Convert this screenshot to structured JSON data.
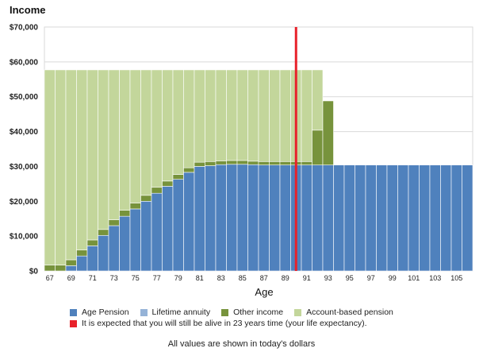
{
  "chart_data": {
    "type": "bar",
    "stacked": true,
    "title": "Income",
    "xlabel": "Age",
    "ylabel": "Income",
    "ylim": [
      0,
      70000
    ],
    "y_ticks": [
      0,
      10000,
      20000,
      30000,
      40000,
      50000,
      60000,
      70000
    ],
    "y_tick_labels": [
      "$0",
      "$10,000",
      "$20,000",
      "$30,000",
      "$40,000",
      "$50,000",
      "$60,000",
      "$70,000"
    ],
    "x_tick_labels": [
      "67",
      "69",
      "71",
      "73",
      "75",
      "77",
      "79",
      "81",
      "83",
      "85",
      "87",
      "89",
      "91",
      "93",
      "95",
      "97",
      "99",
      "101",
      "103",
      "105"
    ],
    "categories": [
      67,
      68,
      69,
      70,
      71,
      72,
      73,
      74,
      75,
      76,
      77,
      78,
      79,
      80,
      81,
      82,
      83,
      84,
      85,
      86,
      87,
      88,
      89,
      90,
      91,
      92,
      93,
      94,
      95,
      96,
      97,
      98,
      99,
      100,
      101,
      102,
      103,
      104,
      105,
      106
    ],
    "series": [
      {
        "name": "Age Pension",
        "color": "#4f81bd",
        "values": [
          0,
          0,
          1500,
          4300,
          7200,
          10200,
          13000,
          15700,
          17800,
          20000,
          22300,
          24300,
          26300,
          28300,
          30000,
          30200,
          30500,
          30600,
          30600,
          30500,
          30400,
          30400,
          30400,
          30400,
          30400,
          30400,
          30400,
          30400,
          30400,
          30400,
          30400,
          30400,
          30400,
          30400,
          30400,
          30400,
          30400,
          30400,
          30400,
          30400
        ]
      },
      {
        "name": "Lifetime annuity",
        "color": "#95b3d7",
        "values": [
          0,
          0,
          0,
          0,
          0,
          0,
          0,
          0,
          0,
          0,
          0,
          0,
          0,
          0,
          0,
          0,
          0,
          0,
          0,
          0,
          0,
          0,
          0,
          0,
          0,
          0,
          0,
          0,
          0,
          0,
          0,
          0,
          0,
          0,
          0,
          0,
          0,
          0,
          0,
          0
        ]
      },
      {
        "name": "Other income",
        "color": "#77933c",
        "values": [
          1700,
          1700,
          1700,
          1700,
          1700,
          1700,
          1700,
          1700,
          1700,
          1700,
          1700,
          1500,
          1400,
          1300,
          1200,
          1200,
          1100,
          1100,
          1100,
          1000,
          1000,
          1000,
          1000,
          1000,
          1000,
          10000,
          18400,
          0,
          0,
          0,
          0,
          0,
          0,
          0,
          0,
          0,
          0,
          0,
          0,
          0
        ]
      },
      {
        "name": "Account-based pension",
        "color": "#c3d69b",
        "values": [
          56000,
          56000,
          54500,
          51700,
          48800,
          45800,
          43000,
          40300,
          38200,
          36000,
          33700,
          31900,
          30000,
          28100,
          26500,
          26300,
          26100,
          26000,
          26000,
          26200,
          26300,
          26300,
          26300,
          26300,
          26300,
          17300,
          0,
          0,
          0,
          0,
          0,
          0,
          0,
          0,
          0,
          0,
          0,
          0,
          0,
          0
        ]
      }
    ],
    "life_expectancy_age": 90,
    "life_expectancy_color": "#e8212a"
  },
  "legend": {
    "items": [
      {
        "label": "Age Pension",
        "color": "#4f81bd"
      },
      {
        "label": "Lifetime annuity",
        "color": "#95b3d7"
      },
      {
        "label": "Other income",
        "color": "#77933c"
      },
      {
        "label": "Account-based pension",
        "color": "#c3d69b"
      }
    ],
    "life_expectancy_label": "It is expected that you will still be alive in 23 years time (your life expectancy).",
    "life_expectancy_color": "#e8212a"
  },
  "footer": "All values are shown in today's dollars"
}
